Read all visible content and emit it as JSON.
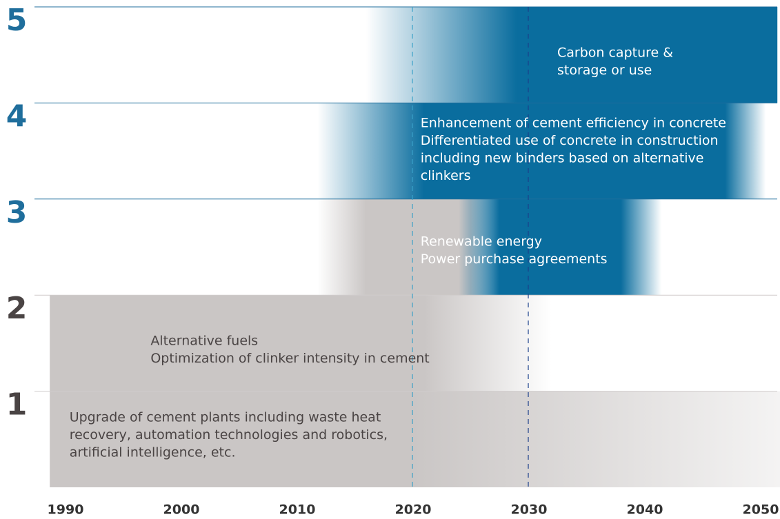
{
  "chart_data": {
    "type": "timeline",
    "xlim": [
      1990,
      2050
    ],
    "xticks": [
      1990,
      2000,
      2010,
      2020,
      2030,
      2040,
      2050
    ],
    "markers": [
      {
        "year": 2020,
        "color": "#3aa0c8"
      },
      {
        "year": 2030,
        "color": "#1a3f8a"
      }
    ],
    "rows": [
      {
        "label": "1",
        "label_color": "#4a4444",
        "text_color": "#4a4444",
        "text_x": 1990.4,
        "lines": [
          "Upgrade of cement plants including waste heat",
          "recovery, automation technologies and robotics,",
          "artificial intelligence, etc."
        ],
        "bands": [
          {
            "color": "#cac6c5",
            "start": 1988.7,
            "full": 1988.7,
            "end_full": 2020,
            "end": 2060
          }
        ]
      },
      {
        "label": "2",
        "label_color": "#4a4444",
        "text_color": "#4a4444",
        "text_x": 1997.4,
        "lines": [
          "Alternative fuels",
          "Optimization of clinker intensity in cement"
        ],
        "bands": [
          {
            "color": "#cac6c5",
            "start": 1988.7,
            "full": 1988.7,
            "end_full": 2021,
            "end": 2032
          }
        ]
      },
      {
        "label": "3",
        "label_color": "#1f6e9c",
        "text_color": "#ffffff",
        "text_x": 2020.7,
        "lines": [
          "Renewable energy",
          "Power purchase agreements"
        ],
        "bands": [
          {
            "color": "#cac6c5",
            "start": 2011.8,
            "full": 2016,
            "end_full": 2025,
            "end": 2027
          },
          {
            "color": "#0a6d9e",
            "start": 2024,
            "full": 2027.5,
            "end_full": 2038,
            "end": 2041.5
          }
        ]
      },
      {
        "label": "4",
        "label_color": "#1f6e9c",
        "text_color": "#ffffff",
        "text_x": 2020.7,
        "lines": [
          "Enhancement of cement efficiency in concrete",
          "Differentiated use of concrete in construction",
          "including new binders based on alternative",
          "clinkers"
        ],
        "bands": [
          {
            "color": "#0a6d9e",
            "start": 2011.8,
            "full": 2021,
            "end_full": 2047,
            "end": 2050.5
          }
        ]
      },
      {
        "label": "5",
        "label_color": "#1f6e9c",
        "text_color": "#ffffff",
        "text_x": 2032.5,
        "lines": [
          "Carbon capture &",
          "storage or use"
        ],
        "bands": [
          {
            "color": "#0a6d9e",
            "start": 2016,
            "full": 2029,
            "end_full": 2051.5,
            "end": 2051.5
          }
        ]
      }
    ]
  }
}
